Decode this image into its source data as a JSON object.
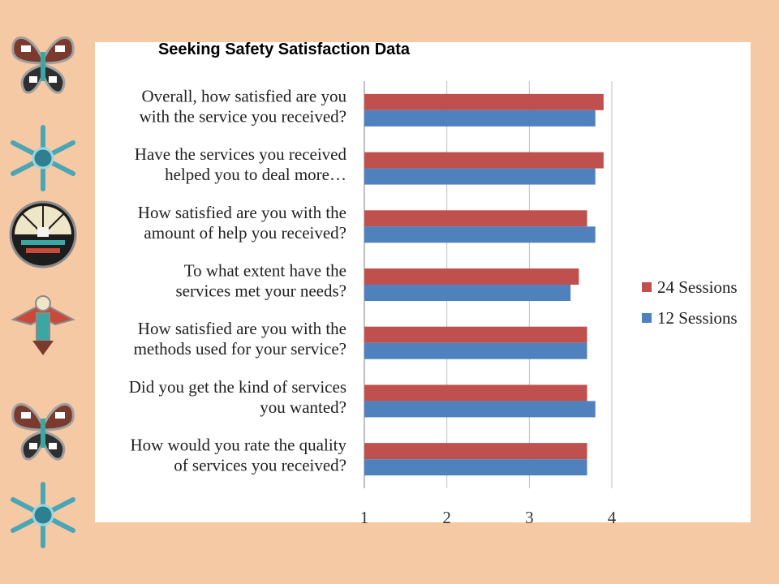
{
  "page": {
    "background_color": "#f5c9a4",
    "ornaments": [
      "butterfly-icon",
      "snowflake-icon",
      "sun-face-icon",
      "kachina-bird-icon",
      "butterfly-icon",
      "snowflake-icon"
    ]
  },
  "chart_data": {
    "type": "bar",
    "orientation": "horizontal",
    "title": "Seeking Safety Satisfaction Data",
    "xlabel": "",
    "ylabel": "",
    "xlim": [
      1,
      4
    ],
    "xticks": [
      "1",
      "2",
      "3",
      "4"
    ],
    "grid": "vertical",
    "legend_position": "right",
    "categories": [
      {
        "lines": [
          "Overall, how satisfied are you",
          "with the service you received?"
        ]
      },
      {
        "lines": [
          "Have the services you received",
          "helped you to deal more…"
        ]
      },
      {
        "lines": [
          "How satisfied are you with the",
          "amount of help you received?"
        ]
      },
      {
        "lines": [
          "To what extent have the",
          "services met your needs?"
        ]
      },
      {
        "lines": [
          "How satisfied are you with the",
          "methods used for your service?"
        ]
      },
      {
        "lines": [
          "Did you get the kind of services",
          "you wanted?"
        ]
      },
      {
        "lines": [
          "How would you rate the quality",
          "of services you received?"
        ]
      }
    ],
    "series": [
      {
        "name": "24 Sessions",
        "color": "#c0504d",
        "values": [
          3.9,
          3.9,
          3.7,
          3.6,
          3.7,
          3.7,
          3.7
        ]
      },
      {
        "name": "12 Sessions",
        "color": "#4f81bd",
        "values": [
          3.8,
          3.8,
          3.8,
          3.5,
          3.7,
          3.8,
          3.7
        ]
      }
    ]
  }
}
